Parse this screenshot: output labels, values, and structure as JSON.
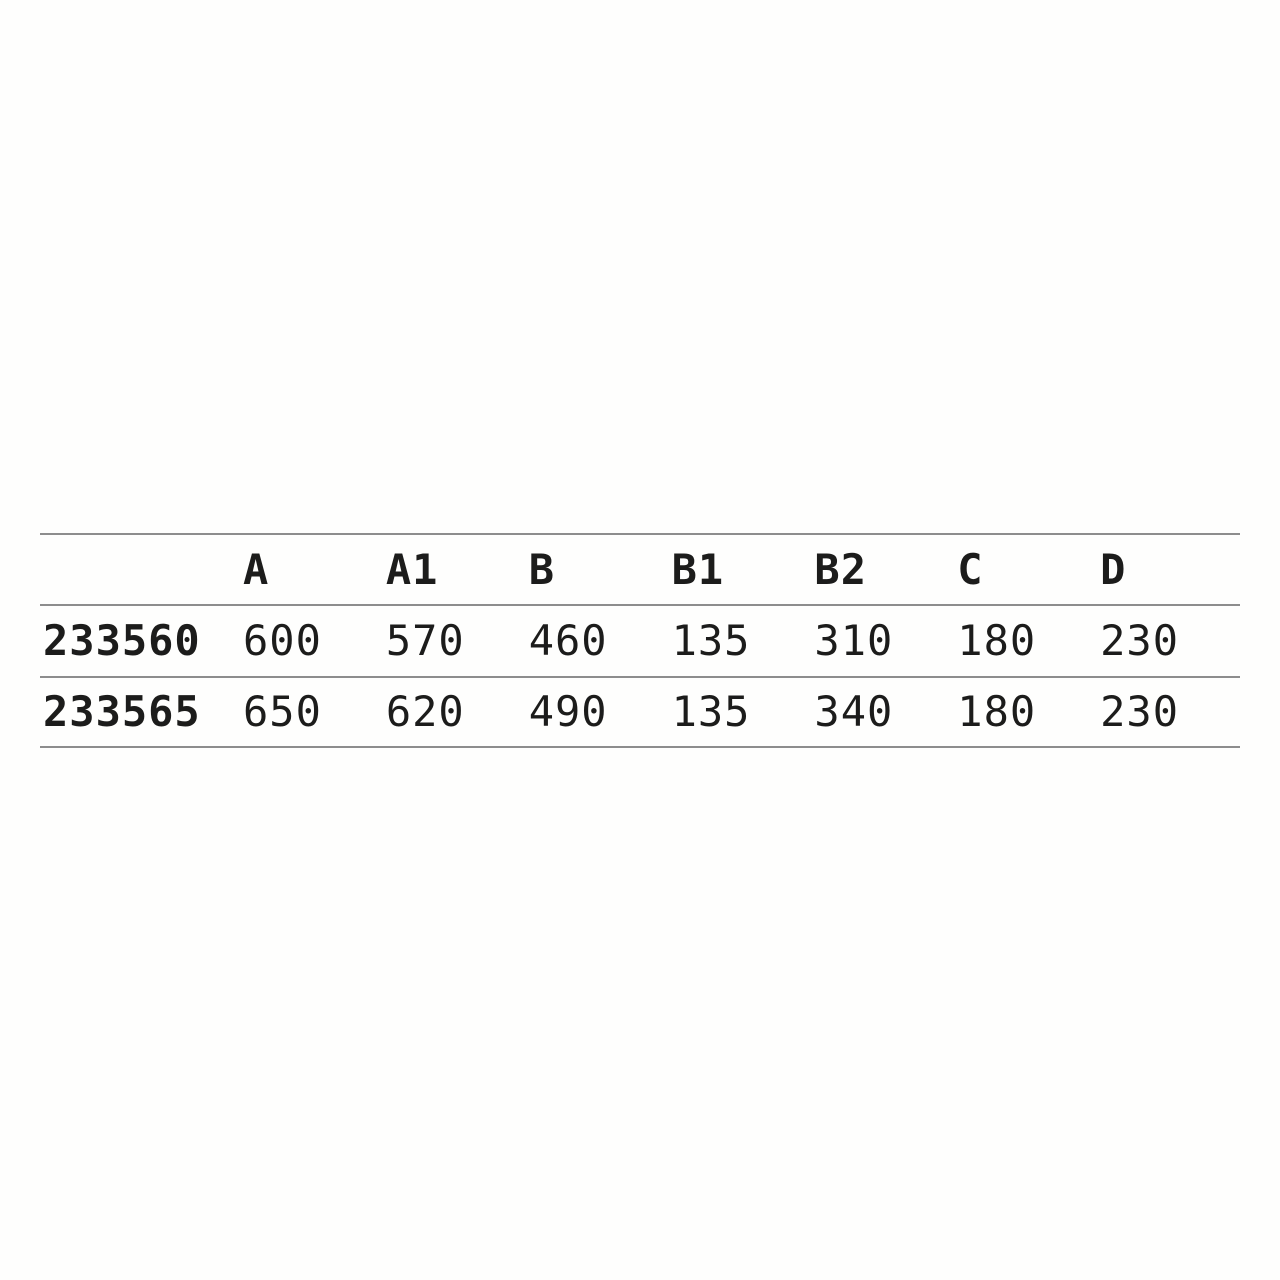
{
  "chart_data": {
    "type": "table",
    "title": "",
    "columns": [
      "",
      "A",
      "A1",
      "B",
      "B1",
      "B2",
      "C",
      "D"
    ],
    "rows": [
      [
        "233560",
        "600",
        "570",
        "460",
        "135",
        "310",
        "180",
        "230"
      ],
      [
        "233565",
        "650",
        "620",
        "490",
        "135",
        "340",
        "180",
        "230"
      ]
    ],
    "layout_hints": {
      "grid": "horizontal-rules-only",
      "header_style": "bold",
      "row_id_style": "bold"
    }
  },
  "colors": {
    "text": "#1c1c1b",
    "line": "#8d8d8d",
    "background": "#fefefd"
  }
}
